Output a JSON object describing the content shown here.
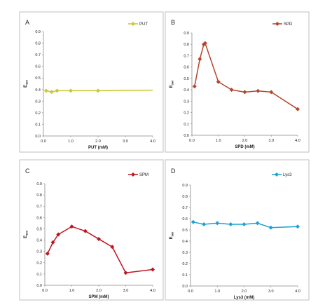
{
  "chart_data": [
    {
      "type": "line",
      "panel_letter": "A",
      "series": [
        {
          "name": "PUT",
          "color": "#c8c832",
          "x": [
            0.1,
            0.3,
            0.5,
            1.0,
            2.0
          ],
          "y": [
            0.39,
            0.38,
            0.39,
            0.39,
            0.39
          ],
          "end_x": 4.0,
          "end_y": 0.395
        }
      ],
      "xlabel": "PUT (mM)",
      "ylabel": "E",
      "ylabel_sub": "360",
      "xlim": [
        0,
        4
      ],
      "ylim": [
        0,
        0.9
      ],
      "xticks": [
        "0.0",
        "1.0",
        "2.0",
        "3.0",
        "4.0"
      ],
      "yticks": [
        "0.0",
        "0.1",
        "0.2",
        "0.3",
        "0.4",
        "0.5",
        "0.6",
        "0.7",
        "0.8",
        "0.9"
      ],
      "legend": "top-right"
    },
    {
      "type": "line",
      "panel_letter": "B",
      "series": [
        {
          "name": "SPD",
          "color": "#b5462a",
          "x": [
            0.1,
            0.3,
            0.45,
            0.5,
            1.0,
            1.5,
            2.0,
            2.5,
            3.0,
            4.0
          ],
          "y": [
            0.43,
            0.67,
            0.8,
            0.81,
            0.47,
            0.4,
            0.38,
            0.39,
            0.38,
            0.23
          ]
        }
      ],
      "xlabel": "SPD (mM)",
      "ylabel": "E",
      "ylabel_sub": "360",
      "xlim": [
        0,
        4
      ],
      "ylim": [
        0,
        0.9
      ],
      "xticks": [
        "0.0",
        "1.0",
        "2.0",
        "3.0",
        "4.0"
      ],
      "yticks": [
        "0.0",
        "0.1",
        "0.2",
        "0.3",
        "0.4",
        "0.5",
        "0.6",
        "0.7",
        "0.8",
        "0.9"
      ],
      "legend": "top-right"
    },
    {
      "type": "line",
      "panel_letter": "C",
      "series": [
        {
          "name": "SPM",
          "color": "#c0141e",
          "x": [
            0.1,
            0.3,
            0.5,
            1.0,
            1.5,
            2.0,
            2.5,
            3.0,
            4.0
          ],
          "y": [
            0.28,
            0.38,
            0.45,
            0.52,
            0.48,
            0.41,
            0.34,
            0.11,
            0.14
          ]
        }
      ],
      "xlabel": "SPM (mM)",
      "ylabel": "E",
      "ylabel_sub": "360",
      "xlim": [
        0,
        4
      ],
      "ylim": [
        0,
        0.9
      ],
      "xticks": [
        "0.0",
        "1.0",
        "2.0",
        "3.0",
        "4.0"
      ],
      "yticks": [
        "0.0",
        "0.1",
        "0.2",
        "0.3",
        "0.4",
        "0.5",
        "0.6",
        "0.7",
        "0.8",
        "0.9"
      ],
      "legend": "top-right"
    },
    {
      "type": "line",
      "panel_letter": "D",
      "series": [
        {
          "name": "Lys3",
          "color": "#1ea0d2",
          "x": [
            0.1,
            0.5,
            1.0,
            1.5,
            2.0,
            2.5,
            3.0,
            4.0
          ],
          "y": [
            0.57,
            0.55,
            0.56,
            0.55,
            0.55,
            0.56,
            0.52,
            0.53
          ]
        }
      ],
      "xlabel": "Lys3 (mM)",
      "ylabel": "E",
      "ylabel_sub": "360",
      "xlim": [
        0,
        4
      ],
      "ylim": [
        0,
        0.9
      ],
      "xticks": [
        "0.0",
        "1.0",
        "2.0",
        "3.0",
        "4.0"
      ],
      "yticks": [
        "0.0",
        "0.1",
        "0.2",
        "0.3",
        "0.4",
        "0.5",
        "0.6",
        "0.7",
        "0.8",
        "0.9"
      ],
      "legend": "top-right"
    }
  ]
}
